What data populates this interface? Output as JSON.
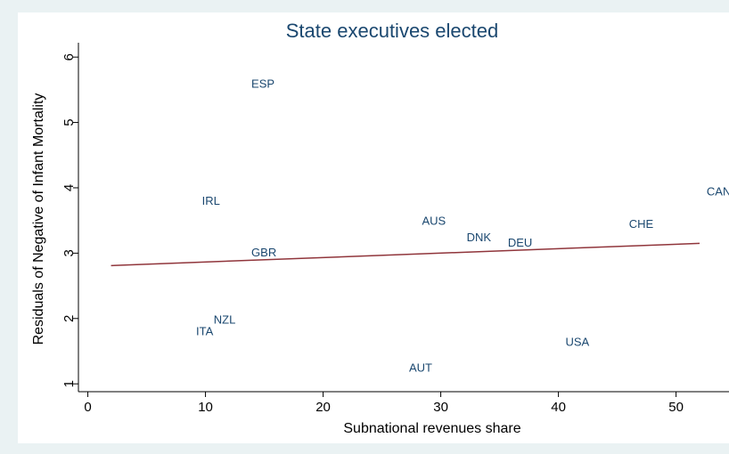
{
  "chart_data": {
    "type": "scatter",
    "title": "State executives elected",
    "x_label": "Subnational revenues share",
    "y_label": "Residuals of Negative of Infant Mortality",
    "point_labels": [
      "ESP",
      "IRL",
      "AUS",
      "DNK",
      "DEU",
      "CHE",
      "CAN",
      "GBR",
      "NZL",
      "ITA",
      "USA",
      "AUT"
    ],
    "x": [
      13.9,
      9.7,
      28.4,
      32.2,
      35.7,
      46.0,
      52.6,
      13.9,
      10.7,
      9.2,
      40.6,
      27.3
    ],
    "values": [
      5.58,
      3.79,
      3.48,
      3.23,
      3.15,
      3.43,
      3.93,
      3.0,
      1.97,
      1.79,
      1.63,
      1.23
    ],
    "color": "#1a476f",
    "fit": {
      "x": [
        1.97,
        52.0
      ],
      "values": [
        2.81,
        3.15
      ],
      "color": "#90353b"
    },
    "xlim": [
      -0.8,
      54.5
    ],
    "ylim": [
      0.88,
      6.22
    ],
    "xticks": [
      0,
      10,
      20,
      30,
      40,
      50
    ],
    "yticks": [
      1,
      2,
      3,
      4,
      5,
      6
    ],
    "grid": false
  }
}
